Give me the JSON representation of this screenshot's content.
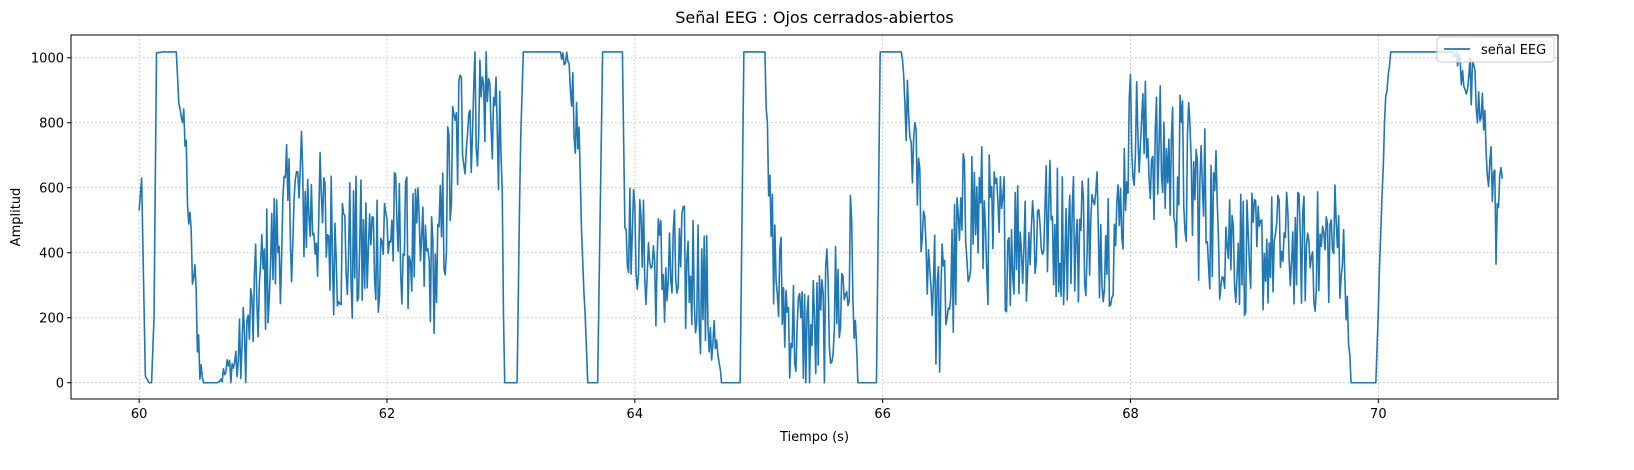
{
  "chart_data": {
    "type": "line",
    "title": "Señal EEG : Ojos cerrados-abiertos",
    "xlabel": "Tiempo (s)",
    "ylabel": "Amplitud",
    "xlim": [
      59.45,
      71.45
    ],
    "ylim": [
      -50,
      1070
    ],
    "xticks": [
      60,
      62,
      64,
      66,
      68,
      70
    ],
    "yticks": [
      0,
      200,
      400,
      600,
      800,
      1000
    ],
    "grid": true,
    "legend_position": "upper-right",
    "colors": {
      "line": "#1f77b4",
      "grid": "#b0b0b0"
    },
    "series": [
      {
        "name": "señal EEG",
        "keyframes": [
          [
            60.0,
            530,
            0
          ],
          [
            60.02,
            630,
            0
          ],
          [
            60.05,
            20,
            0
          ],
          [
            60.08,
            0,
            0
          ],
          [
            60.1,
            0,
            0
          ],
          [
            60.12,
            200,
            0
          ],
          [
            60.14,
            1015,
            0
          ],
          [
            60.2,
            1018,
            0
          ],
          [
            60.3,
            1018,
            0
          ],
          [
            60.32,
            900,
            40
          ],
          [
            60.35,
            800,
            50
          ],
          [
            60.38,
            700,
            60
          ],
          [
            60.4,
            500,
            60
          ],
          [
            60.43,
            350,
            80
          ],
          [
            60.47,
            200,
            90
          ],
          [
            60.49,
            60,
            40
          ],
          [
            60.52,
            0,
            0
          ],
          [
            60.62,
            0,
            0
          ],
          [
            60.7,
            30,
            30
          ],
          [
            60.8,
            70,
            80
          ],
          [
            60.9,
            180,
            120
          ],
          [
            61.0,
            320,
            140
          ],
          [
            61.2,
            520,
            150
          ],
          [
            61.3,
            580,
            160
          ],
          [
            61.4,
            520,
            150
          ],
          [
            61.6,
            430,
            160
          ],
          [
            61.8,
            380,
            170
          ],
          [
            62.0,
            470,
            150
          ],
          [
            62.2,
            420,
            140
          ],
          [
            62.4,
            330,
            130
          ],
          [
            62.5,
            600,
            180
          ],
          [
            62.6,
            820,
            150
          ],
          [
            62.7,
            850,
            150
          ],
          [
            62.8,
            900,
            130
          ],
          [
            62.9,
            800,
            150
          ],
          [
            62.93,
            500,
            100
          ],
          [
            62.95,
            0,
            0
          ],
          [
            63.05,
            0,
            0
          ],
          [
            63.08,
            800,
            50
          ],
          [
            63.1,
            1018,
            0
          ],
          [
            63.4,
            1018,
            0
          ],
          [
            63.5,
            900,
            80
          ],
          [
            63.55,
            700,
            80
          ],
          [
            63.58,
            400,
            30
          ],
          [
            63.62,
            0,
            0
          ],
          [
            63.7,
            0,
            0
          ],
          [
            63.74,
            1018,
            0
          ],
          [
            63.9,
            1018,
            0
          ],
          [
            63.92,
            500,
            100
          ],
          [
            64.1,
            380,
            120
          ],
          [
            64.3,
            320,
            150
          ],
          [
            64.5,
            350,
            150
          ],
          [
            64.6,
            220,
            150
          ],
          [
            64.7,
            0,
            0
          ],
          [
            64.85,
            0,
            0
          ],
          [
            64.88,
            1018,
            0
          ],
          [
            65.05,
            1018,
            0
          ],
          [
            65.08,
            550,
            100
          ],
          [
            65.15,
            300,
            150
          ],
          [
            65.3,
            150,
            120
          ],
          [
            65.5,
            150,
            150
          ],
          [
            65.7,
            300,
            150
          ],
          [
            65.75,
            400,
            150
          ],
          [
            65.8,
            0,
            0
          ],
          [
            65.95,
            0,
            0
          ],
          [
            65.98,
            1018,
            0
          ],
          [
            66.15,
            1018,
            0
          ],
          [
            66.18,
            850,
            80
          ],
          [
            66.25,
            700,
            100
          ],
          [
            66.35,
            450,
            120
          ],
          [
            66.45,
            200,
            150
          ],
          [
            66.55,
            300,
            150
          ],
          [
            66.7,
            550,
            180
          ],
          [
            66.9,
            450,
            160
          ],
          [
            67.1,
            450,
            150
          ],
          [
            67.3,
            500,
            150
          ],
          [
            67.5,
            450,
            150
          ],
          [
            67.7,
            480,
            150
          ],
          [
            67.9,
            450,
            150
          ],
          [
            68.0,
            800,
            120
          ],
          [
            68.2,
            700,
            150
          ],
          [
            68.4,
            650,
            180
          ],
          [
            68.6,
            550,
            180
          ],
          [
            68.8,
            450,
            150
          ],
          [
            69.0,
            380,
            130
          ],
          [
            69.2,
            420,
            120
          ],
          [
            69.5,
            400,
            130
          ],
          [
            69.7,
            450,
            140
          ],
          [
            69.75,
            250,
            50
          ],
          [
            69.78,
            0,
            0
          ],
          [
            69.98,
            0,
            0
          ],
          [
            70.05,
            800,
            50
          ],
          [
            70.1,
            1018,
            0
          ],
          [
            70.6,
            1018,
            0
          ],
          [
            70.7,
            950,
            60
          ],
          [
            70.8,
            850,
            80
          ],
          [
            70.9,
            700,
            100
          ],
          [
            70.95,
            500,
            100
          ],
          [
            71.0,
            620,
            50
          ]
        ],
        "keyframe_fields": [
          "time_s",
          "mean_amplitude",
          "noise_amplitude"
        ],
        "sampling_period_s": 0.01,
        "clip": [
          0,
          1018
        ]
      }
    ]
  }
}
